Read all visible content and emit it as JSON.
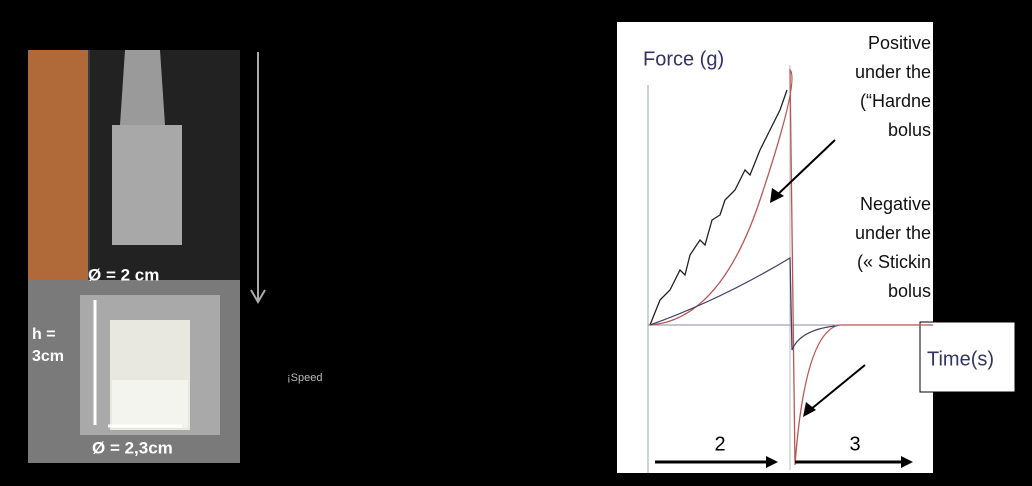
{
  "photo": {
    "probe_diameter": "Ø = 2 cm",
    "height_line1": "h =",
    "height_line2": "3cm",
    "cup_diameter": "Ø = 2,3cm"
  },
  "speed_label": "¡Speed",
  "graph": {
    "y_label": "Force (g)",
    "x_label": "Time(s)",
    "positive_note": [
      "Positive",
      "under the",
      "(“Hardne",
      "bolus"
    ],
    "negative_note": [
      "Negative",
      "under the",
      "(« Stickin",
      "bolus"
    ],
    "phase_labels": [
      "2",
      "3"
    ]
  }
}
